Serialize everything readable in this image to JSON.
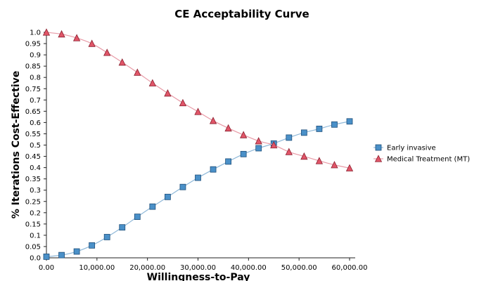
{
  "chart_data": {
    "type": "line",
    "title": "CE Acceptability Curve",
    "xlabel": "Willingness-to-Pay",
    "ylabel": "% Iterations Cost-Effective",
    "xlim": [
      0,
      60000
    ],
    "ylim": [
      0,
      1.0
    ],
    "x_ticks": [
      0,
      10000,
      20000,
      30000,
      40000,
      50000,
      60000
    ],
    "x_tick_labels": [
      "0.00",
      "10,000.00",
      "20,000.00",
      "30,000.00",
      "40,000.00",
      "50,000.00",
      "60,000.00"
    ],
    "y_ticks": [
      0,
      0.05,
      0.1,
      0.15,
      0.2,
      0.25,
      0.3,
      0.35,
      0.4,
      0.45,
      0.5,
      0.55,
      0.6,
      0.65,
      0.7,
      0.75,
      0.8,
      0.85,
      0.9,
      0.95,
      1.0
    ],
    "y_tick_labels": [
      "0.0",
      "0.05",
      "0.1",
      "0.15",
      "0.2",
      "0.25",
      "0.3",
      "0.35",
      "0.4",
      "0.45",
      "0.5",
      "0.55",
      "0.6",
      "0.65",
      "0.7",
      "0.75",
      "0.8",
      "0.85",
      "0.9",
      "0.95",
      "1.0"
    ],
    "grid": false,
    "legend_position": "right",
    "x": [
      0,
      3000,
      6000,
      9000,
      12000,
      15000,
      18000,
      21000,
      24000,
      27000,
      30000,
      33000,
      36000,
      39000,
      42000,
      45000,
      48000,
      51000,
      54000,
      57000,
      60000
    ],
    "series": [
      {
        "name": "Early invasive",
        "marker": "square",
        "color": "#4a90c8",
        "line_color": "#8fb8d8",
        "values": [
          0.005,
          0.012,
          0.028,
          0.055,
          0.092,
          0.135,
          0.182,
          0.227,
          0.27,
          0.314,
          0.355,
          0.392,
          0.427,
          0.46,
          0.486,
          0.507,
          0.533,
          0.555,
          0.572,
          0.591,
          0.605
        ]
      },
      {
        "name": "Medical Treatment (MT)",
        "marker": "triangle",
        "color": "#e05568",
        "line_color": "#e89aa6",
        "values": [
          1.0,
          0.992,
          0.975,
          0.95,
          0.91,
          0.867,
          0.822,
          0.775,
          0.73,
          0.687,
          0.648,
          0.608,
          0.575,
          0.545,
          0.518,
          0.5,
          0.47,
          0.45,
          0.43,
          0.412,
          0.398
        ]
      }
    ]
  }
}
